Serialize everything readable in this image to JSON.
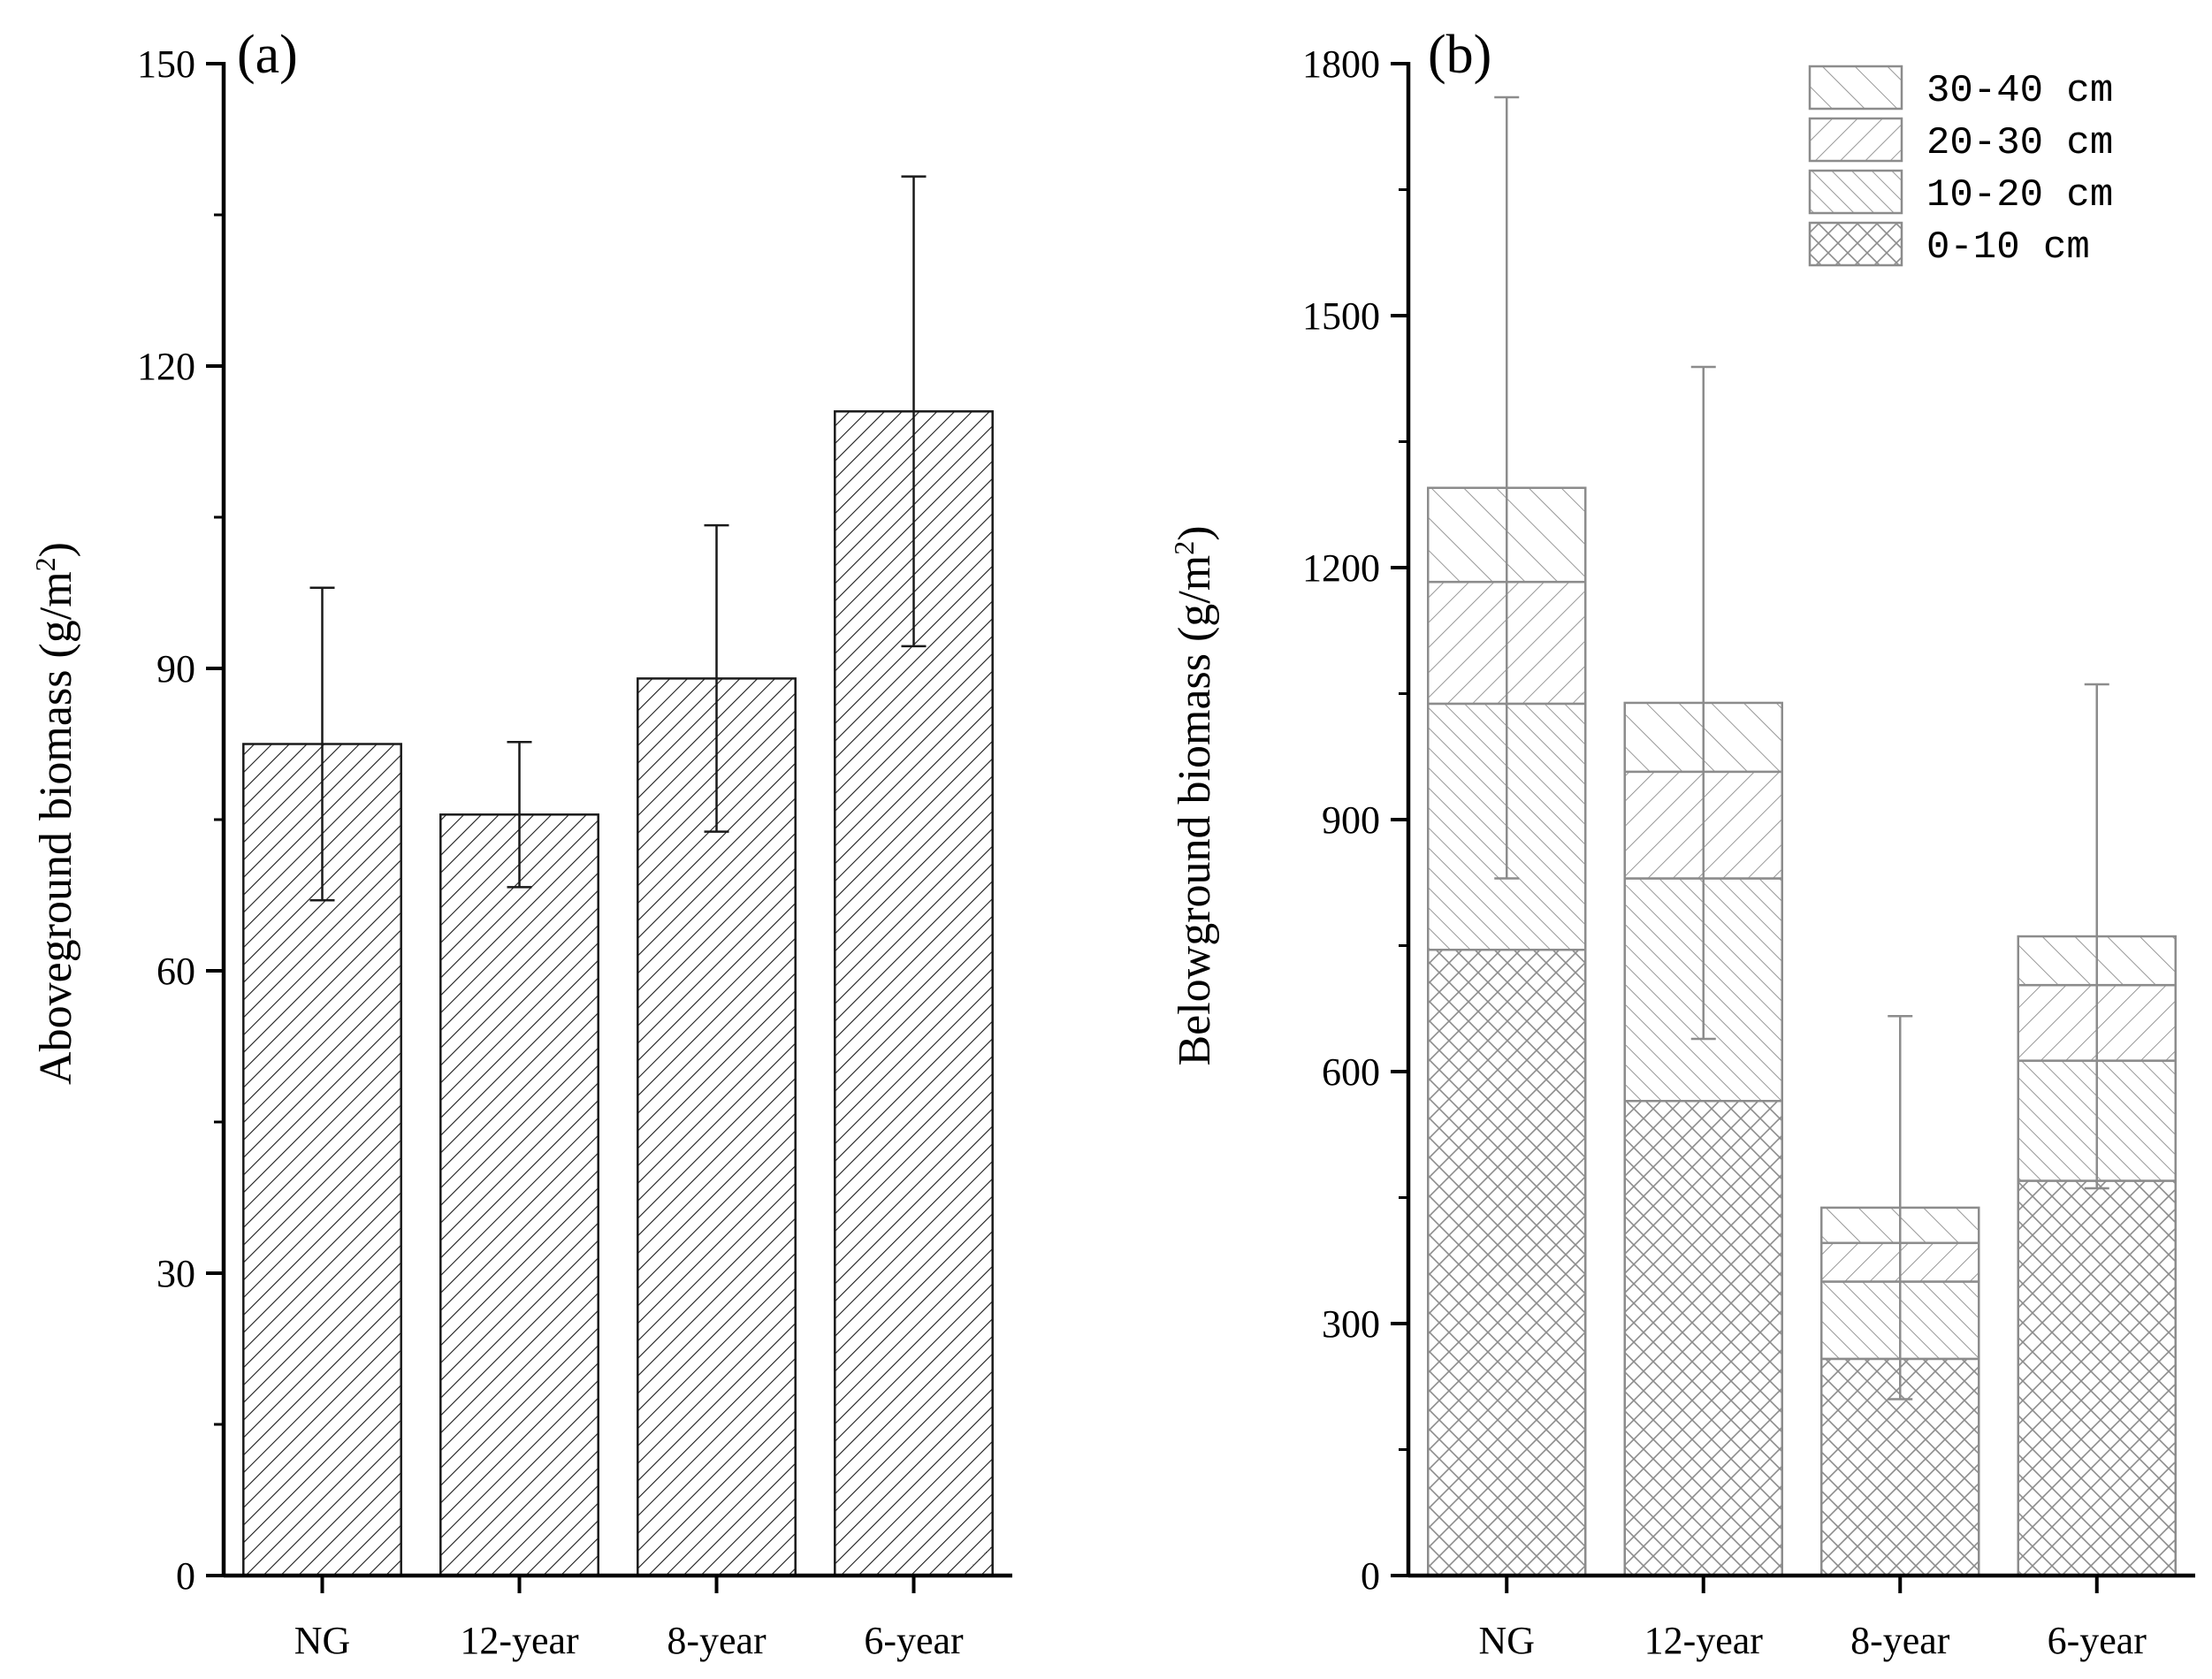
{
  "chart_data": [
    {
      "panel_label": "(a)",
      "type": "bar",
      "categories": [
        "NG",
        "12-year",
        "8-year",
        "6-year"
      ],
      "values": [
        82.5,
        75.5,
        89,
        115.5
      ],
      "error_bars": [
        15.5,
        7.2,
        15.2,
        23.3
      ],
      "ylabel_main": "Aboveground biomass (g/m",
      "ylabel_sup": "2",
      "ylabel_end": ")",
      "xlabel": "",
      "ylim": [
        0,
        150
      ],
      "yticks": [
        "0",
        "30",
        "60",
        "90",
        "120",
        "150"
      ],
      "grid": false,
      "colors": {
        "bar_edge": "#1a1a1a",
        "bar_fill": "#ffffff",
        "hatch": "#1a1a1a",
        "error_bar": "#1a1a1a"
      }
    },
    {
      "panel_label": "(b)",
      "type": "bar",
      "stacked": true,
      "categories": [
        "NG",
        "12-year",
        "8-year",
        "6-year"
      ],
      "series": [
        {
          "name": "0-10 cm",
          "values": [
            745,
            565,
            258,
            470
          ],
          "pattern": "crosshatch"
        },
        {
          "name": "10-20 cm",
          "values": [
            293,
            265,
            92,
            143
          ],
          "pattern": "back-dense"
        },
        {
          "name": "20-30 cm",
          "values": [
            145,
            127,
            46,
            90
          ],
          "pattern": "forward"
        },
        {
          "name": "30-40 cm",
          "values": [
            112,
            82,
            42,
            58
          ],
          "pattern": "back-wide"
        }
      ],
      "totals": [
        1295,
        1039,
        438,
        761
      ],
      "error_bars": [
        465,
        400,
        228,
        300
      ],
      "legend_order": [
        "30-40 cm",
        "20-30 cm",
        "10-20 cm",
        "0-10 cm"
      ],
      "legend_position": "top-right",
      "ylabel_main": "Belowground biomass (g/m",
      "ylabel_sup": "2",
      "ylabel_end": ")",
      "xlabel": "",
      "ylim": [
        0,
        1800
      ],
      "yticks": [
        "0",
        "300",
        "600",
        "900",
        "1200",
        "1500",
        "1800"
      ],
      "grid": false,
      "colors": {
        "bar_edge": "#8c8c8c",
        "bar_fill": "#ffffff",
        "hatch": "#8c8c8c",
        "error_bar": "#8c8c8c",
        "axis": "#000000"
      }
    }
  ]
}
